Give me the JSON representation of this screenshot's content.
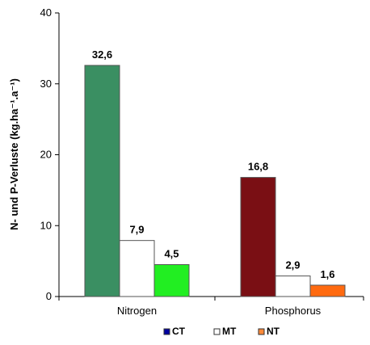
{
  "chart_data": {
    "type": "bar",
    "title": "",
    "xlabel": "",
    "ylabel": "N- und P-Verluste (kg.ha⁻¹.a⁻¹)",
    "ylim": [
      0,
      40
    ],
    "yticks": [
      0,
      10,
      20,
      30,
      40
    ],
    "categories": [
      "Nitrogen",
      "Phosphorus"
    ],
    "value_labels": [
      [
        "32,6",
        "7,9",
        "4,5"
      ],
      [
        "16,8",
        "2,9",
        "1,6"
      ]
    ],
    "series": [
      {
        "name": "CT",
        "values": [
          32.6,
          16.8
        ]
      },
      {
        "name": "MT",
        "values": [
          7.9,
          2.9
        ]
      },
      {
        "name": "NT",
        "values": [
          4.5,
          1.6
        ]
      }
    ],
    "bar_colors": [
      [
        "#3a8f62",
        "#ffffff",
        "#22ee22"
      ],
      [
        "#7a0f14",
        "#ffffff",
        "#ff6a10"
      ]
    ],
    "legend_colors": [
      "#0000a0",
      "#ffffff",
      "#ff8a3a"
    ],
    "grid": false,
    "legend_position": "bottom"
  }
}
